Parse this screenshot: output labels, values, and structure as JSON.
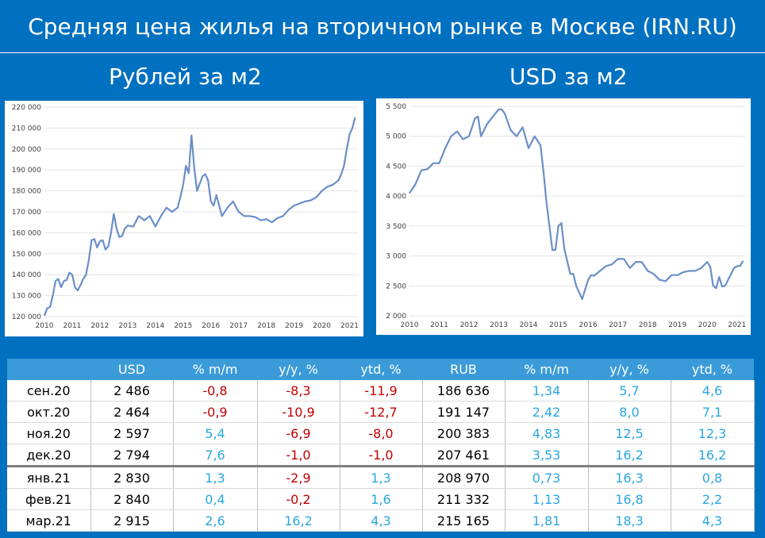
{
  "title": "Средняя цена жилья на вторичном рынке в Москве (IRN.RU)",
  "subtitle_left": "Рублей за м2",
  "subtitle_right": "USD за м2",
  "colors": {
    "background": "#0070c0",
    "header": "#3b9bd8",
    "line": "#6a8fc8",
    "negative": "#c00000",
    "positive": "#2aa6e0"
  },
  "chart_data": [
    {
      "type": "line",
      "title": "Рублей за м2",
      "x_ticks": [
        "2010",
        "2011",
        "2012",
        "2013",
        "2014",
        "2015",
        "2016",
        "2017",
        "2018",
        "2019",
        "2020",
        "2021"
      ],
      "y_ticks": [
        "120 000",
        "130 000",
        "140 000",
        "150 000",
        "160 000",
        "170 000",
        "180 000",
        "190 000",
        "200 000",
        "210 000",
        "220 000"
      ],
      "ylim": [
        120000,
        220000
      ],
      "xlim": [
        2010,
        2021.3
      ],
      "x": [
        2010.0,
        2010.1,
        2010.2,
        2010.3,
        2010.4,
        2010.5,
        2010.6,
        2010.7,
        2010.8,
        2010.9,
        2011.0,
        2011.1,
        2011.2,
        2011.3,
        2011.4,
        2011.5,
        2011.6,
        2011.7,
        2011.8,
        2011.9,
        2012.0,
        2012.1,
        2012.2,
        2012.3,
        2012.4,
        2012.5,
        2012.6,
        2012.7,
        2012.8,
        2012.9,
        2013.0,
        2013.2,
        2013.4,
        2013.6,
        2013.8,
        2014.0,
        2014.2,
        2014.4,
        2014.6,
        2014.8,
        2014.9,
        2015.0,
        2015.1,
        2015.2,
        2015.3,
        2015.4,
        2015.5,
        2015.7,
        2015.8,
        2015.9,
        2016.0,
        2016.1,
        2016.2,
        2016.4,
        2016.6,
        2016.8,
        2017.0,
        2017.2,
        2017.4,
        2017.6,
        2017.8,
        2018.0,
        2018.2,
        2018.4,
        2018.6,
        2018.8,
        2019.0,
        2019.2,
        2019.4,
        2019.6,
        2019.8,
        2020.0,
        2020.2,
        2020.4,
        2020.6,
        2020.7,
        2020.8,
        2020.9,
        2021.0,
        2021.1,
        2021.2
      ],
      "values": [
        120500,
        124000,
        124500,
        130000,
        137000,
        138000,
        134000,
        137000,
        137500,
        141000,
        140000,
        134000,
        132500,
        135000,
        138000,
        140000,
        147000,
        156500,
        157000,
        153000,
        156000,
        156500,
        152000,
        153500,
        160000,
        169000,
        162000,
        158000,
        158500,
        162000,
        163500,
        163000,
        168000,
        166000,
        168000,
        163000,
        168000,
        172000,
        170000,
        172000,
        177000,
        183000,
        192000,
        188500,
        206500,
        191000,
        180000,
        187000,
        188000,
        185000,
        175000,
        173000,
        178000,
        168000,
        172000,
        175000,
        170000,
        168000,
        168000,
        167500,
        166000,
        166500,
        165000,
        167000,
        168000,
        171000,
        173000,
        174000,
        175000,
        175500,
        177000,
        180000,
        182000,
        183000,
        185000,
        188000,
        192000,
        200000,
        207000,
        210000,
        215000
      ],
      "series_color": "#6a8fc8"
    },
    {
      "type": "line",
      "title": "USD за м2",
      "x_ticks": [
        "2010",
        "2011",
        "2012",
        "2013",
        "2014",
        "2015",
        "2016",
        "2017",
        "2018",
        "2019",
        "2020",
        "2021"
      ],
      "y_ticks": [
        "2 000",
        "2 500",
        "3 000",
        "3 500",
        "4 000",
        "4 500",
        "5 000",
        "5 500"
      ],
      "ylim": [
        2000,
        5500
      ],
      "xlim": [
        2010,
        2021.3
      ],
      "x": [
        2010.0,
        2010.2,
        2010.4,
        2010.6,
        2010.8,
        2011.0,
        2011.2,
        2011.4,
        2011.6,
        2011.8,
        2012.0,
        2012.2,
        2012.3,
        2012.4,
        2012.6,
        2012.8,
        2013.0,
        2013.1,
        2013.2,
        2013.4,
        2013.6,
        2013.8,
        2014.0,
        2014.2,
        2014.4,
        2014.5,
        2014.6,
        2014.8,
        2014.9,
        2015.0,
        2015.1,
        2015.2,
        2015.4,
        2015.5,
        2015.6,
        2015.8,
        2016.0,
        2016.1,
        2016.2,
        2016.4,
        2016.6,
        2016.8,
        2017.0,
        2017.2,
        2017.4,
        2017.6,
        2017.8,
        2018.0,
        2018.2,
        2018.4,
        2018.6,
        2018.8,
        2019.0,
        2019.2,
        2019.4,
        2019.6,
        2019.8,
        2020.0,
        2020.1,
        2020.2,
        2020.3,
        2020.4,
        2020.5,
        2020.6,
        2020.8,
        2020.9,
        2021.0,
        2021.1,
        2021.2
      ],
      "values": [
        4050,
        4200,
        4430,
        4450,
        4550,
        4550,
        4800,
        5000,
        5080,
        4950,
        5000,
        5300,
        5330,
        5000,
        5200,
        5330,
        5450,
        5450,
        5380,
        5100,
        5000,
        5150,
        4800,
        5000,
        4850,
        4420,
        3900,
        3100,
        3100,
        3500,
        3550,
        3120,
        2700,
        2700,
        2500,
        2280,
        2600,
        2680,
        2670,
        2750,
        2830,
        2860,
        2950,
        2950,
        2800,
        2900,
        2900,
        2750,
        2700,
        2600,
        2580,
        2680,
        2680,
        2730,
        2750,
        2750,
        2800,
        2900,
        2820,
        2500,
        2460,
        2650,
        2490,
        2500,
        2700,
        2800,
        2830,
        2830,
        2915
      ],
      "series_color": "#6a8fc8"
    }
  ],
  "table": {
    "headers": [
      "",
      "USD",
      "% m/m",
      "y/y, %",
      "ytd, %",
      "RUB",
      "% m/m",
      "y/y, %",
      "ytd, %"
    ],
    "rows": [
      [
        "сен.20",
        "2 486",
        "-0,8",
        "-8,3",
        "-11,9",
        "186 636",
        "1,34",
        "5,7",
        "4,6"
      ],
      [
        "окт.20",
        "2 464",
        "-0,9",
        "-10,9",
        "-12,7",
        "191 147",
        "2,42",
        "8,0",
        "7,1"
      ],
      [
        "ноя.20",
        "2 597",
        "5,4",
        "-6,9",
        "-8,0",
        "200 383",
        "4,83",
        "12,5",
        "12,3"
      ],
      [
        "дек.20",
        "2 794",
        "7,6",
        "-1,0",
        "-1,0",
        "207 461",
        "3,53",
        "16,2",
        "16,2"
      ],
      [
        "янв.21",
        "2 830",
        "1,3",
        "-2,9",
        "1,3",
        "208 970",
        "0,73",
        "16,3",
        "0,8"
      ],
      [
        "фев.21",
        "2 840",
        "0,4",
        "-0,2",
        "1,6",
        "211 332",
        "1,13",
        "16,8",
        "2,2"
      ],
      [
        "мар.21",
        "2 915",
        "2,6",
        "16,2",
        "4,3",
        "215 165",
        "1,81",
        "18,3",
        "4,3"
      ]
    ]
  }
}
